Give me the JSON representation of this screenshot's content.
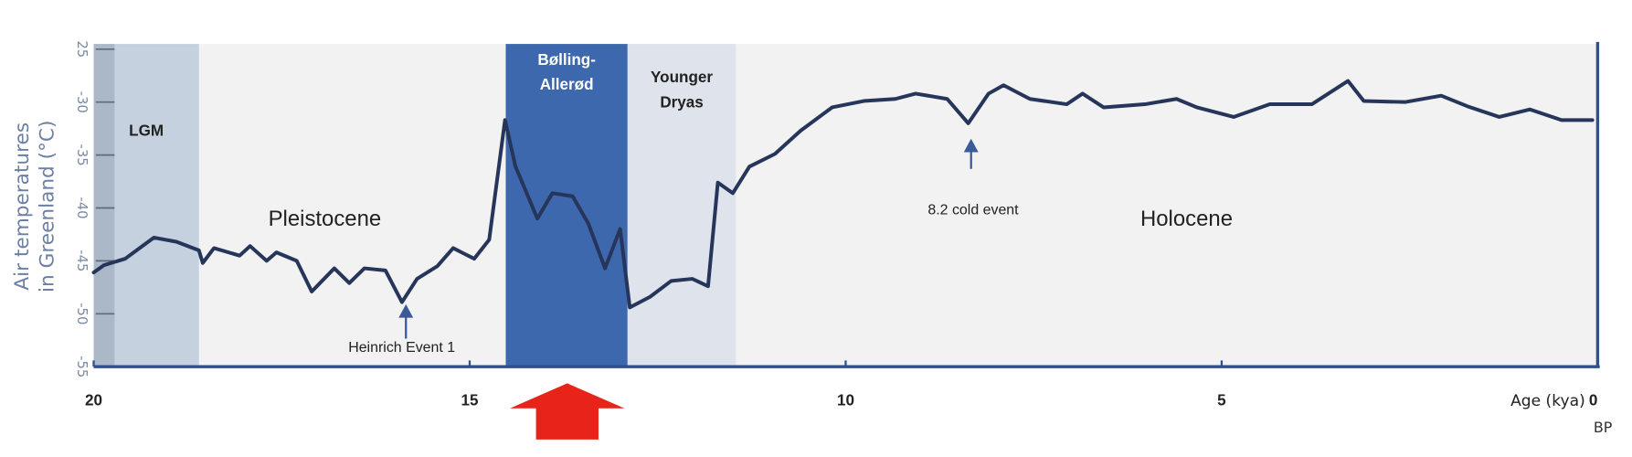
{
  "chart_data": {
    "type": "line",
    "y_label_lines": [
      "Air temperatures",
      "in Greenland (°C)"
    ],
    "x_label": "Age (kya)",
    "x_unit_note": "BP",
    "color": "#26355a",
    "x": [
      20,
      19.86,
      19.58,
      19.2,
      18.9,
      18.6,
      18.55,
      18.4,
      18.06,
      17.92,
      17.7,
      17.57,
      17.3,
      17.1,
      16.8,
      16.6,
      16.4,
      16.12,
      15.9,
      15.7,
      15.43,
      15.22,
      14.94,
      14.74,
      14.53,
      14.39,
      14.1,
      13.9,
      13.63,
      13.42,
      13.2,
      13.0,
      12.87,
      12.6,
      12.32,
      12.04,
      11.83,
      11.7,
      11.5,
      11.28,
      10.94,
      10.6,
      10.18,
      9.76,
      9.34,
      9.07,
      8.65,
      8.37,
      8.1,
      7.9,
      7.55,
      7.06,
      6.85,
      6.57,
      6.02,
      5.6,
      5.33,
      4.84,
      4.36,
      3.8,
      3.32,
      3.11,
      2.56,
      2.08,
      1.73,
      1.31,
      0.9,
      0.48,
      0.07
    ],
    "values": [
      -46.1,
      -45.4,
      -44.8,
      -42.8,
      -43.2,
      -44.0,
      -45.2,
      -43.8,
      -44.5,
      -43.6,
      -45.0,
      -44.2,
      -45.0,
      -47.9,
      -45.7,
      -47.1,
      -45.7,
      -45.9,
      -48.9,
      -46.7,
      -45.5,
      -43.8,
      -44.8,
      -43.0,
      -31.7,
      -36.1,
      -41.0,
      -38.6,
      -38.9,
      -41.5,
      -45.7,
      -42.0,
      -49.4,
      -48.4,
      -46.9,
      -46.7,
      -47.4,
      -37.6,
      -38.6,
      -36.1,
      -34.9,
      -32.7,
      -30.5,
      -29.9,
      -29.7,
      -29.2,
      -29.7,
      -32.0,
      -29.2,
      -28.4,
      -29.7,
      -30.2,
      -29.2,
      -30.5,
      -30.2,
      -29.7,
      -30.5,
      -31.4,
      -30.2,
      -30.2,
      -28.0,
      -29.9,
      -30.0,
      -29.4,
      -30.4,
      -31.4,
      -30.7,
      -31.7,
      -31.7
    ],
    "xlim": [
      20,
      0
    ],
    "ylim": [
      -55,
      -25
    ],
    "xticks": [
      20,
      15,
      10,
      5,
      0
    ],
    "yticks": [
      {
        "value": -25,
        "label": "25"
      },
      -30,
      -35,
      -40,
      -45,
      -50,
      -55
    ],
    "regions": [
      {
        "label_lines": [
          "LGM"
        ],
        "from": 20,
        "to": 18.6,
        "color": "#c6d1df"
      },
      {
        "label_lines": [
          "Bølling-",
          "Allerød"
        ],
        "from": 14.52,
        "to": 12.9,
        "color": "#3d68ad"
      },
      {
        "label_lines": [
          "Younger",
          "Dryas"
        ],
        "from": 12.9,
        "to": 11.46,
        "color": "#dfe4ec"
      }
    ],
    "annotations": [
      "Pleistocene",
      "Holocene",
      "8.2 cold event",
      "Heinrich Event 1"
    ]
  }
}
